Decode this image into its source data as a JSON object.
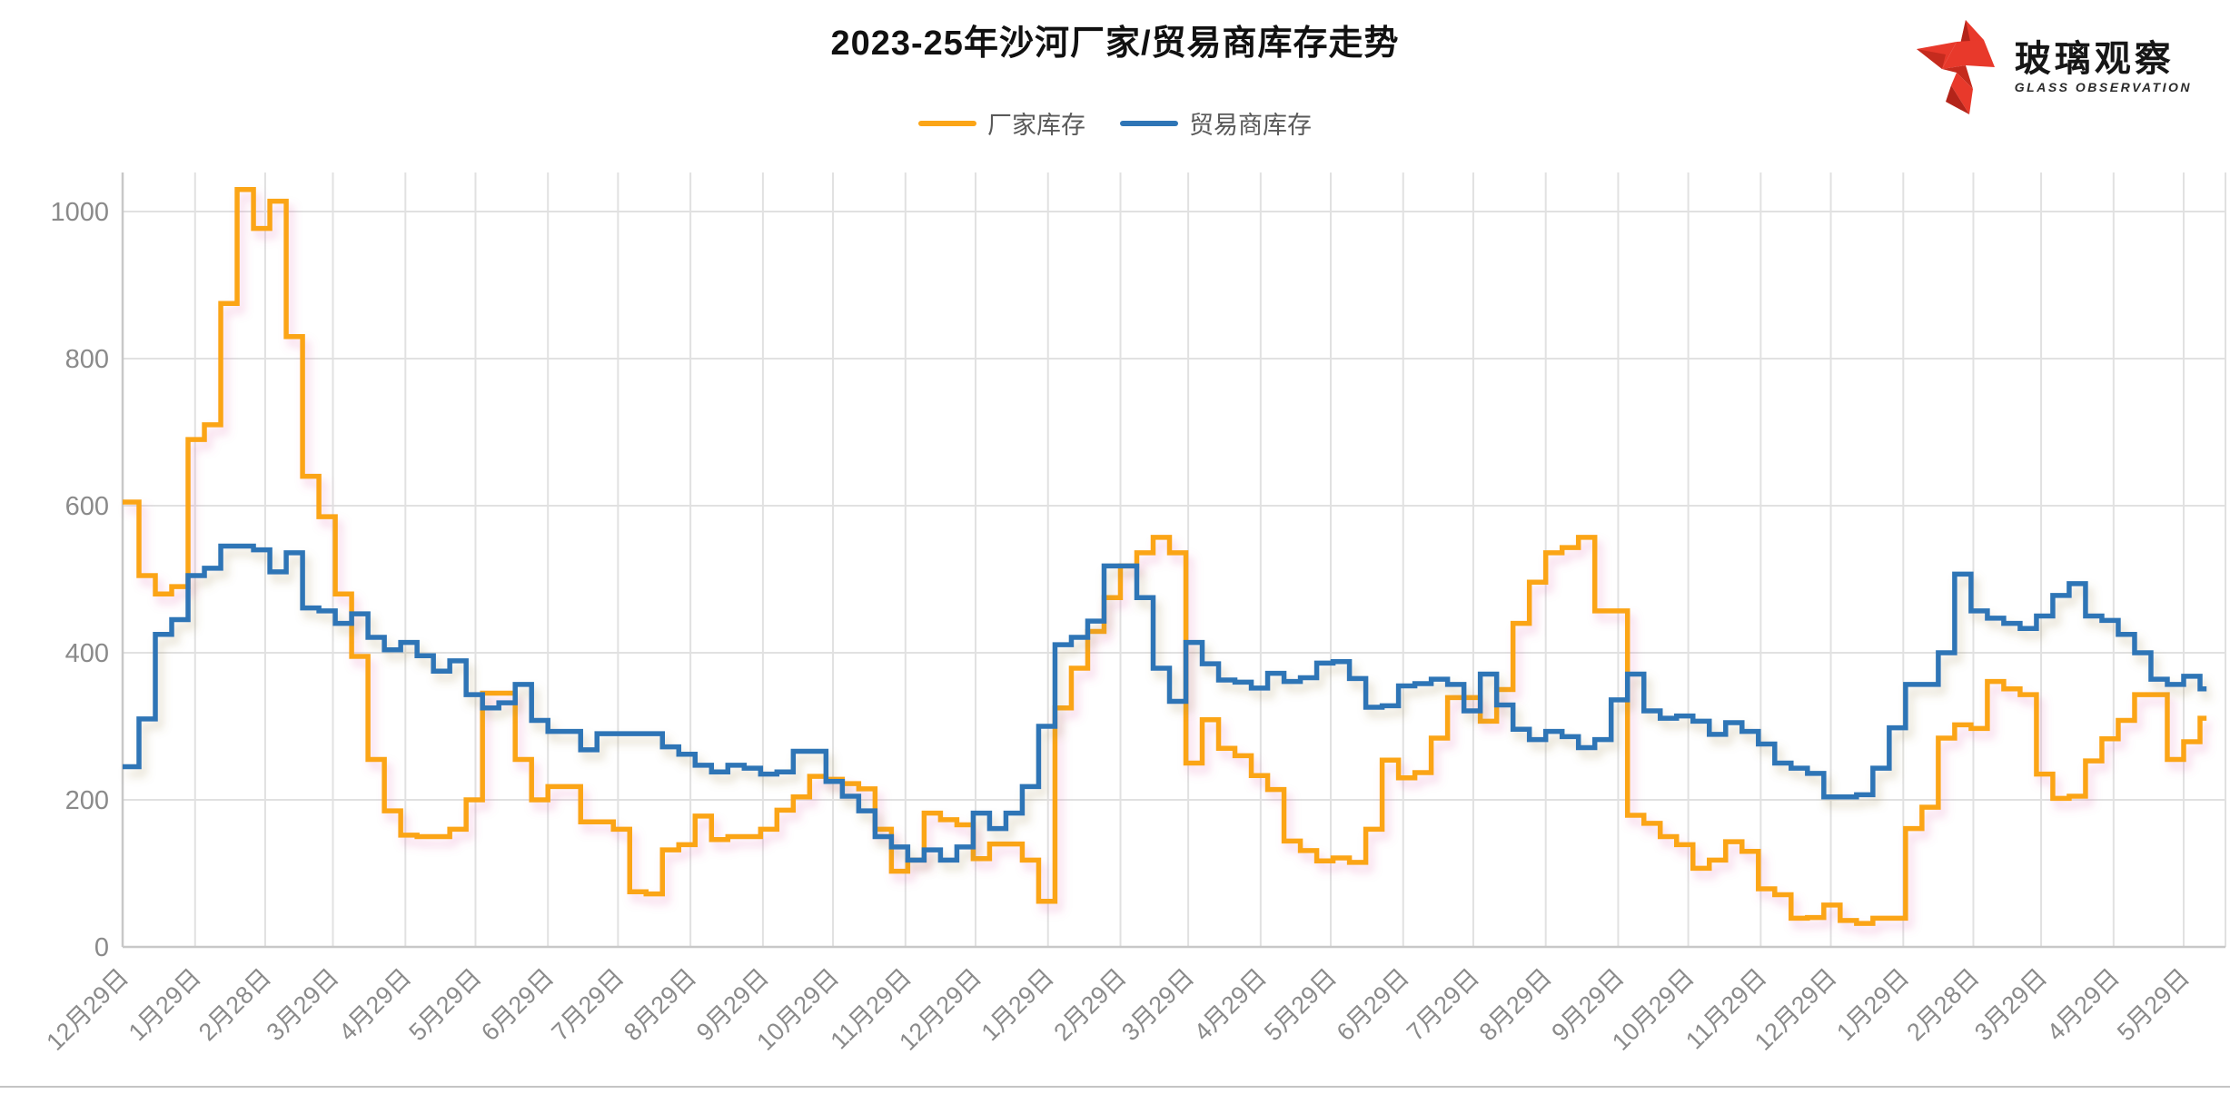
{
  "header": {
    "title": "2023-25年沙河厂家/贸易商库存走势"
  },
  "logo": {
    "name": "玻璃观察",
    "subtitle": "GLASS OBSERVATION",
    "brand_color": "#e23a28"
  },
  "axis_colors": {
    "label": "#8a8a8a",
    "grid": "#e1e1e1",
    "axis_line": "#c8c8c8"
  },
  "chart_data": {
    "type": "line",
    "step_style": true,
    "title": "2023-25年沙河厂家/贸易商库存走势",
    "legend_position": "top",
    "grid": true,
    "ylim": [
      0,
      1000
    ],
    "y_ticks": [
      0,
      200,
      400,
      600,
      800,
      1000
    ],
    "x_tick_labels": [
      "12月29日",
      "1月29日",
      "2月28日",
      "3月29日",
      "4月29日",
      "5月29日",
      "6月29日",
      "7月29日",
      "8月29日",
      "9月29日",
      "10月29日",
      "11月29日",
      "12月29日",
      "1月29日",
      "2月29日",
      "3月29日",
      "4月29日",
      "5月29日",
      "6月29日",
      "7月29日",
      "8月29日",
      "9月29日",
      "10月29日",
      "11月29日",
      "12月29日",
      "1月29日",
      "2月28日",
      "3月29日",
      "4月29日",
      "5月29日"
    ],
    "x_tick_day_offsets": [
      0,
      31,
      61,
      90,
      121,
      151,
      182,
      212,
      243,
      274,
      304,
      335,
      365,
      396,
      427,
      456,
      487,
      517,
      548,
      578,
      609,
      640,
      670,
      701,
      731,
      762,
      792,
      821,
      852,
      882
    ],
    "points_per_week": 1,
    "series": [
      {
        "name": "厂家库存",
        "color": "#FBA517",
        "shadow_color": "#e060a8",
        "values": [
          605,
          505,
          480,
          490,
          690,
          710,
          875,
          1030,
          977,
          1014,
          830,
          640,
          585,
          480,
          395,
          255,
          185,
          152,
          150,
          150,
          160,
          200,
          345,
          345,
          255,
          200,
          218,
          218,
          170,
          170,
          160,
          75,
          72,
          132,
          139,
          178,
          146,
          150,
          150,
          160,
          186,
          204,
          232,
          228,
          222,
          215,
          160,
          103,
          118,
          182,
          173,
          166,
          120,
          140,
          140,
          118,
          62,
          325,
          379,
          429,
          475,
          518,
          536,
          557,
          536,
          250,
          309,
          270,
          260,
          233,
          214,
          144,
          131,
          117,
          121,
          115,
          160,
          254,
          230,
          237,
          284,
          339,
          339,
          307,
          350,
          440,
          496,
          536,
          543,
          557,
          457,
          457,
          179,
          168,
          150,
          139,
          107,
          118,
          143,
          130,
          79,
          71,
          39,
          40,
          57,
          36,
          32,
          39,
          39,
          161,
          190,
          284,
          302,
          297,
          361,
          351,
          343,
          235,
          202,
          205,
          253,
          283,
          308,
          343,
          343,
          255,
          279,
          311
        ]
      },
      {
        "name": "贸易商库存",
        "color": "#2E75B6",
        "shadow_color": "#a08c50",
        "values": [
          245,
          310,
          425,
          445,
          505,
          515,
          545,
          545,
          540,
          510,
          536,
          461,
          457,
          440,
          453,
          421,
          404,
          414,
          396,
          375,
          389,
          343,
          325,
          332,
          357,
          308,
          293,
          293,
          268,
          290,
          290,
          290,
          290,
          272,
          262,
          247,
          238,
          247,
          243,
          235,
          238,
          266,
          266,
          225,
          205,
          185,
          150,
          136,
          118,
          132,
          118,
          136,
          182,
          161,
          182,
          218,
          300,
          411,
          421,
          443,
          518,
          518,
          475,
          379,
          334,
          414,
          385,
          363,
          360,
          352,
          372,
          361,
          366,
          386,
          388,
          365,
          326,
          328,
          355,
          358,
          364,
          357,
          321,
          371,
          329,
          296,
          282,
          293,
          286,
          271,
          282,
          336,
          371,
          321,
          311,
          314,
          307,
          289,
          305,
          293,
          276,
          250,
          243,
          236,
          204,
          204,
          207,
          243,
          298,
          357,
          357,
          400,
          507,
          457,
          447,
          440,
          433,
          450,
          478,
          494,
          450,
          444,
          425,
          400,
          364,
          357,
          368,
          351
        ]
      }
    ]
  }
}
